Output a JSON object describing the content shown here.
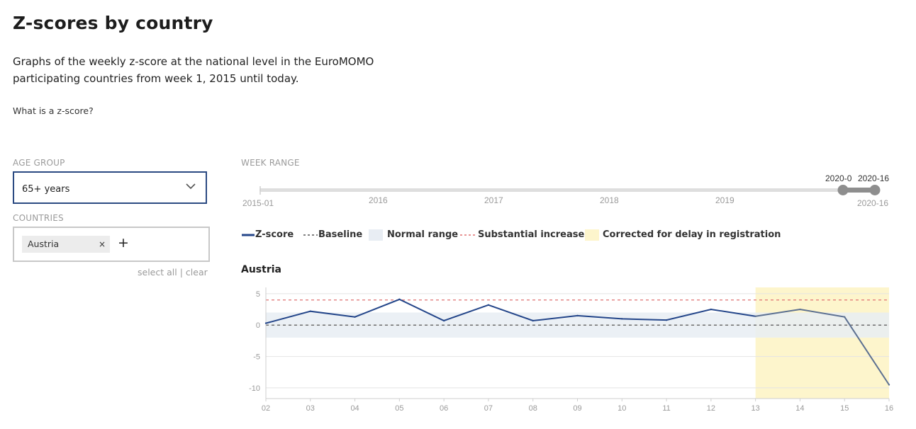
{
  "page": {
    "title": "Z-scores by country",
    "intro": "Graphs of the weekly z-score at the national level in the EuroMOMO participating countries from week 1, 2015 until today.",
    "zscore_link": "What is a z-score?"
  },
  "filters": {
    "age_group_label": "AGE GROUP",
    "age_group_value": "65+ years",
    "countries_label": "COUNTRIES",
    "selected_country": "Austria",
    "chip_remove": "×",
    "add_country": "+",
    "select_all": "select all",
    "separator": " | ",
    "clear": "clear"
  },
  "week_range": {
    "label": "WEEK RANGE",
    "start_label": "2015-01",
    "end_label": "2020-16",
    "year_ticks": [
      "2016",
      "2017",
      "2018",
      "2019"
    ],
    "handle_low_label": "2020-0",
    "handle_high_label": "2020-16",
    "range_start": "2020-02",
    "range_end": "2020-16"
  },
  "legend": {
    "zscore": "Z-score",
    "baseline": "Baseline",
    "normal_range": "Normal range",
    "substantial": "Substantial increase",
    "corrected": "Corrected for delay in registration"
  },
  "colors": {
    "zscore_line": "#24468a",
    "zscore_corrected": "#5c7091",
    "baseline": "#555555",
    "normal_range": "#e8edf3",
    "substantial": "#e07070",
    "corrected": "#fdf5cc",
    "slider_track": "#dedede",
    "slider_handle": "#8e8e8e"
  },
  "chart_title": "Austria",
  "chart_data": {
    "type": "line",
    "title": "Austria",
    "x": [
      "02",
      "03",
      "04",
      "05",
      "06",
      "07",
      "08",
      "09",
      "10",
      "11",
      "12",
      "13",
      "14",
      "15",
      "16"
    ],
    "series": [
      {
        "name": "Z-score",
        "values": [
          0.3,
          2.2,
          1.3,
          4.1,
          0.7,
          3.2,
          0.7,
          1.5,
          1.0,
          0.8,
          2.5,
          1.4,
          2.5,
          1.3,
          -9.5
        ]
      }
    ],
    "baseline": 0,
    "normal_range": [
      -2,
      2
    ],
    "substantial_increase": 4,
    "corrected_from": "13",
    "yticks": [
      5,
      0,
      -5,
      -10
    ],
    "ylim": [
      -11.7,
      6
    ],
    "grid": true
  }
}
